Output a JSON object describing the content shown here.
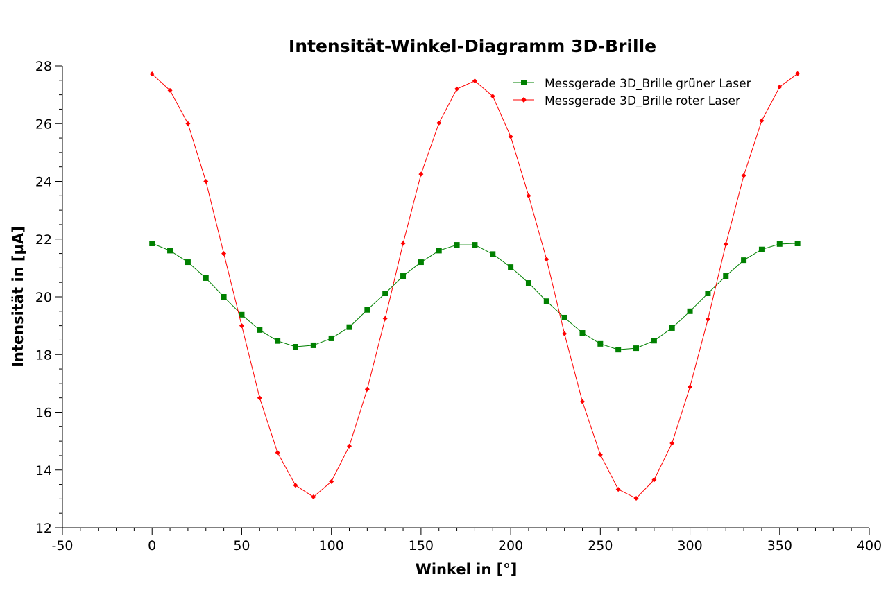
{
  "chart_data": {
    "type": "line",
    "title": "Intensität-Winkel-Diagramm 3D-Brille",
    "xlabel": "Winkel in [°]",
    "ylabel": "Intensität in [µA]",
    "xlim": [
      -50,
      400
    ],
    "ylim": [
      12,
      28
    ],
    "xticks": [
      -50,
      0,
      50,
      100,
      150,
      200,
      250,
      300,
      350,
      400
    ],
    "yticks": [
      12,
      14,
      16,
      18,
      20,
      22,
      24,
      26,
      28
    ],
    "grid": false,
    "legend_position": "top-right",
    "x": [
      0,
      10,
      20,
      30,
      40,
      50,
      60,
      70,
      80,
      90,
      100,
      110,
      120,
      130,
      140,
      150,
      160,
      170,
      180,
      190,
      200,
      210,
      220,
      230,
      240,
      250,
      260,
      270,
      280,
      290,
      300,
      310,
      320,
      330,
      340,
      350,
      360
    ],
    "series": [
      {
        "name": "Messgerade 3D_Brille grüner Laser",
        "color": "#008000",
        "marker": "square",
        "values": [
          21.85,
          21.6,
          21.2,
          20.65,
          20.0,
          19.38,
          18.85,
          18.47,
          18.27,
          18.32,
          18.56,
          18.95,
          19.55,
          20.12,
          20.72,
          21.2,
          21.6,
          21.8,
          21.8,
          21.48,
          21.03,
          20.48,
          19.85,
          19.28,
          18.75,
          18.37,
          18.17,
          18.22,
          18.48,
          18.92,
          19.5,
          20.12,
          20.72,
          21.27,
          21.64,
          21.83,
          21.85
        ]
      },
      {
        "name": "Messgerade 3D_Brille roter Laser",
        "color": "#ff0000",
        "marker": "diamond",
        "values": [
          27.72,
          27.15,
          26.0,
          24.0,
          21.5,
          19.0,
          16.5,
          14.6,
          13.47,
          13.07,
          13.6,
          14.83,
          16.8,
          19.25,
          21.85,
          24.25,
          26.02,
          27.2,
          27.48,
          26.95,
          25.55,
          23.5,
          21.3,
          18.72,
          16.37,
          14.53,
          13.33,
          13.02,
          13.66,
          14.93,
          16.88,
          19.22,
          21.82,
          24.2,
          26.1,
          27.27,
          27.73
        ]
      }
    ]
  }
}
